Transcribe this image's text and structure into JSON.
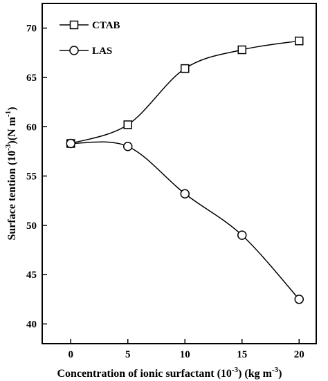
{
  "chart_data": {
    "type": "line",
    "xlabel_main": "Concentration of ionic surfactant (10",
    "xlabel_sup1": "-3",
    "xlabel_mid": ") (kg m",
    "xlabel_sup2": "-3",
    "xlabel_end": ")",
    "ylabel_main": "Surface tention (10",
    "ylabel_sup1": "-3",
    "ylabel_mid": ")(N m",
    "ylabel_sup2": "-1",
    "ylabel_end": ")",
    "xlim": [
      -2.5,
      21.5
    ],
    "ylim": [
      38,
      72.5
    ],
    "xticks": [
      0,
      5,
      10,
      15,
      20
    ],
    "yticks": [
      40,
      45,
      50,
      55,
      60,
      65,
      70
    ],
    "legend_position": "top-left",
    "grid": false,
    "series": [
      {
        "name": "CTAB",
        "marker": "square",
        "x": [
          0,
          5,
          10,
          15,
          20
        ],
        "y": [
          58.3,
          60.2,
          65.9,
          67.8,
          68.7
        ]
      },
      {
        "name": "LAS",
        "marker": "circle",
        "x": [
          0,
          5,
          10,
          15,
          20
        ],
        "y": [
          58.3,
          58.0,
          53.2,
          49.0,
          42.5
        ]
      }
    ]
  }
}
